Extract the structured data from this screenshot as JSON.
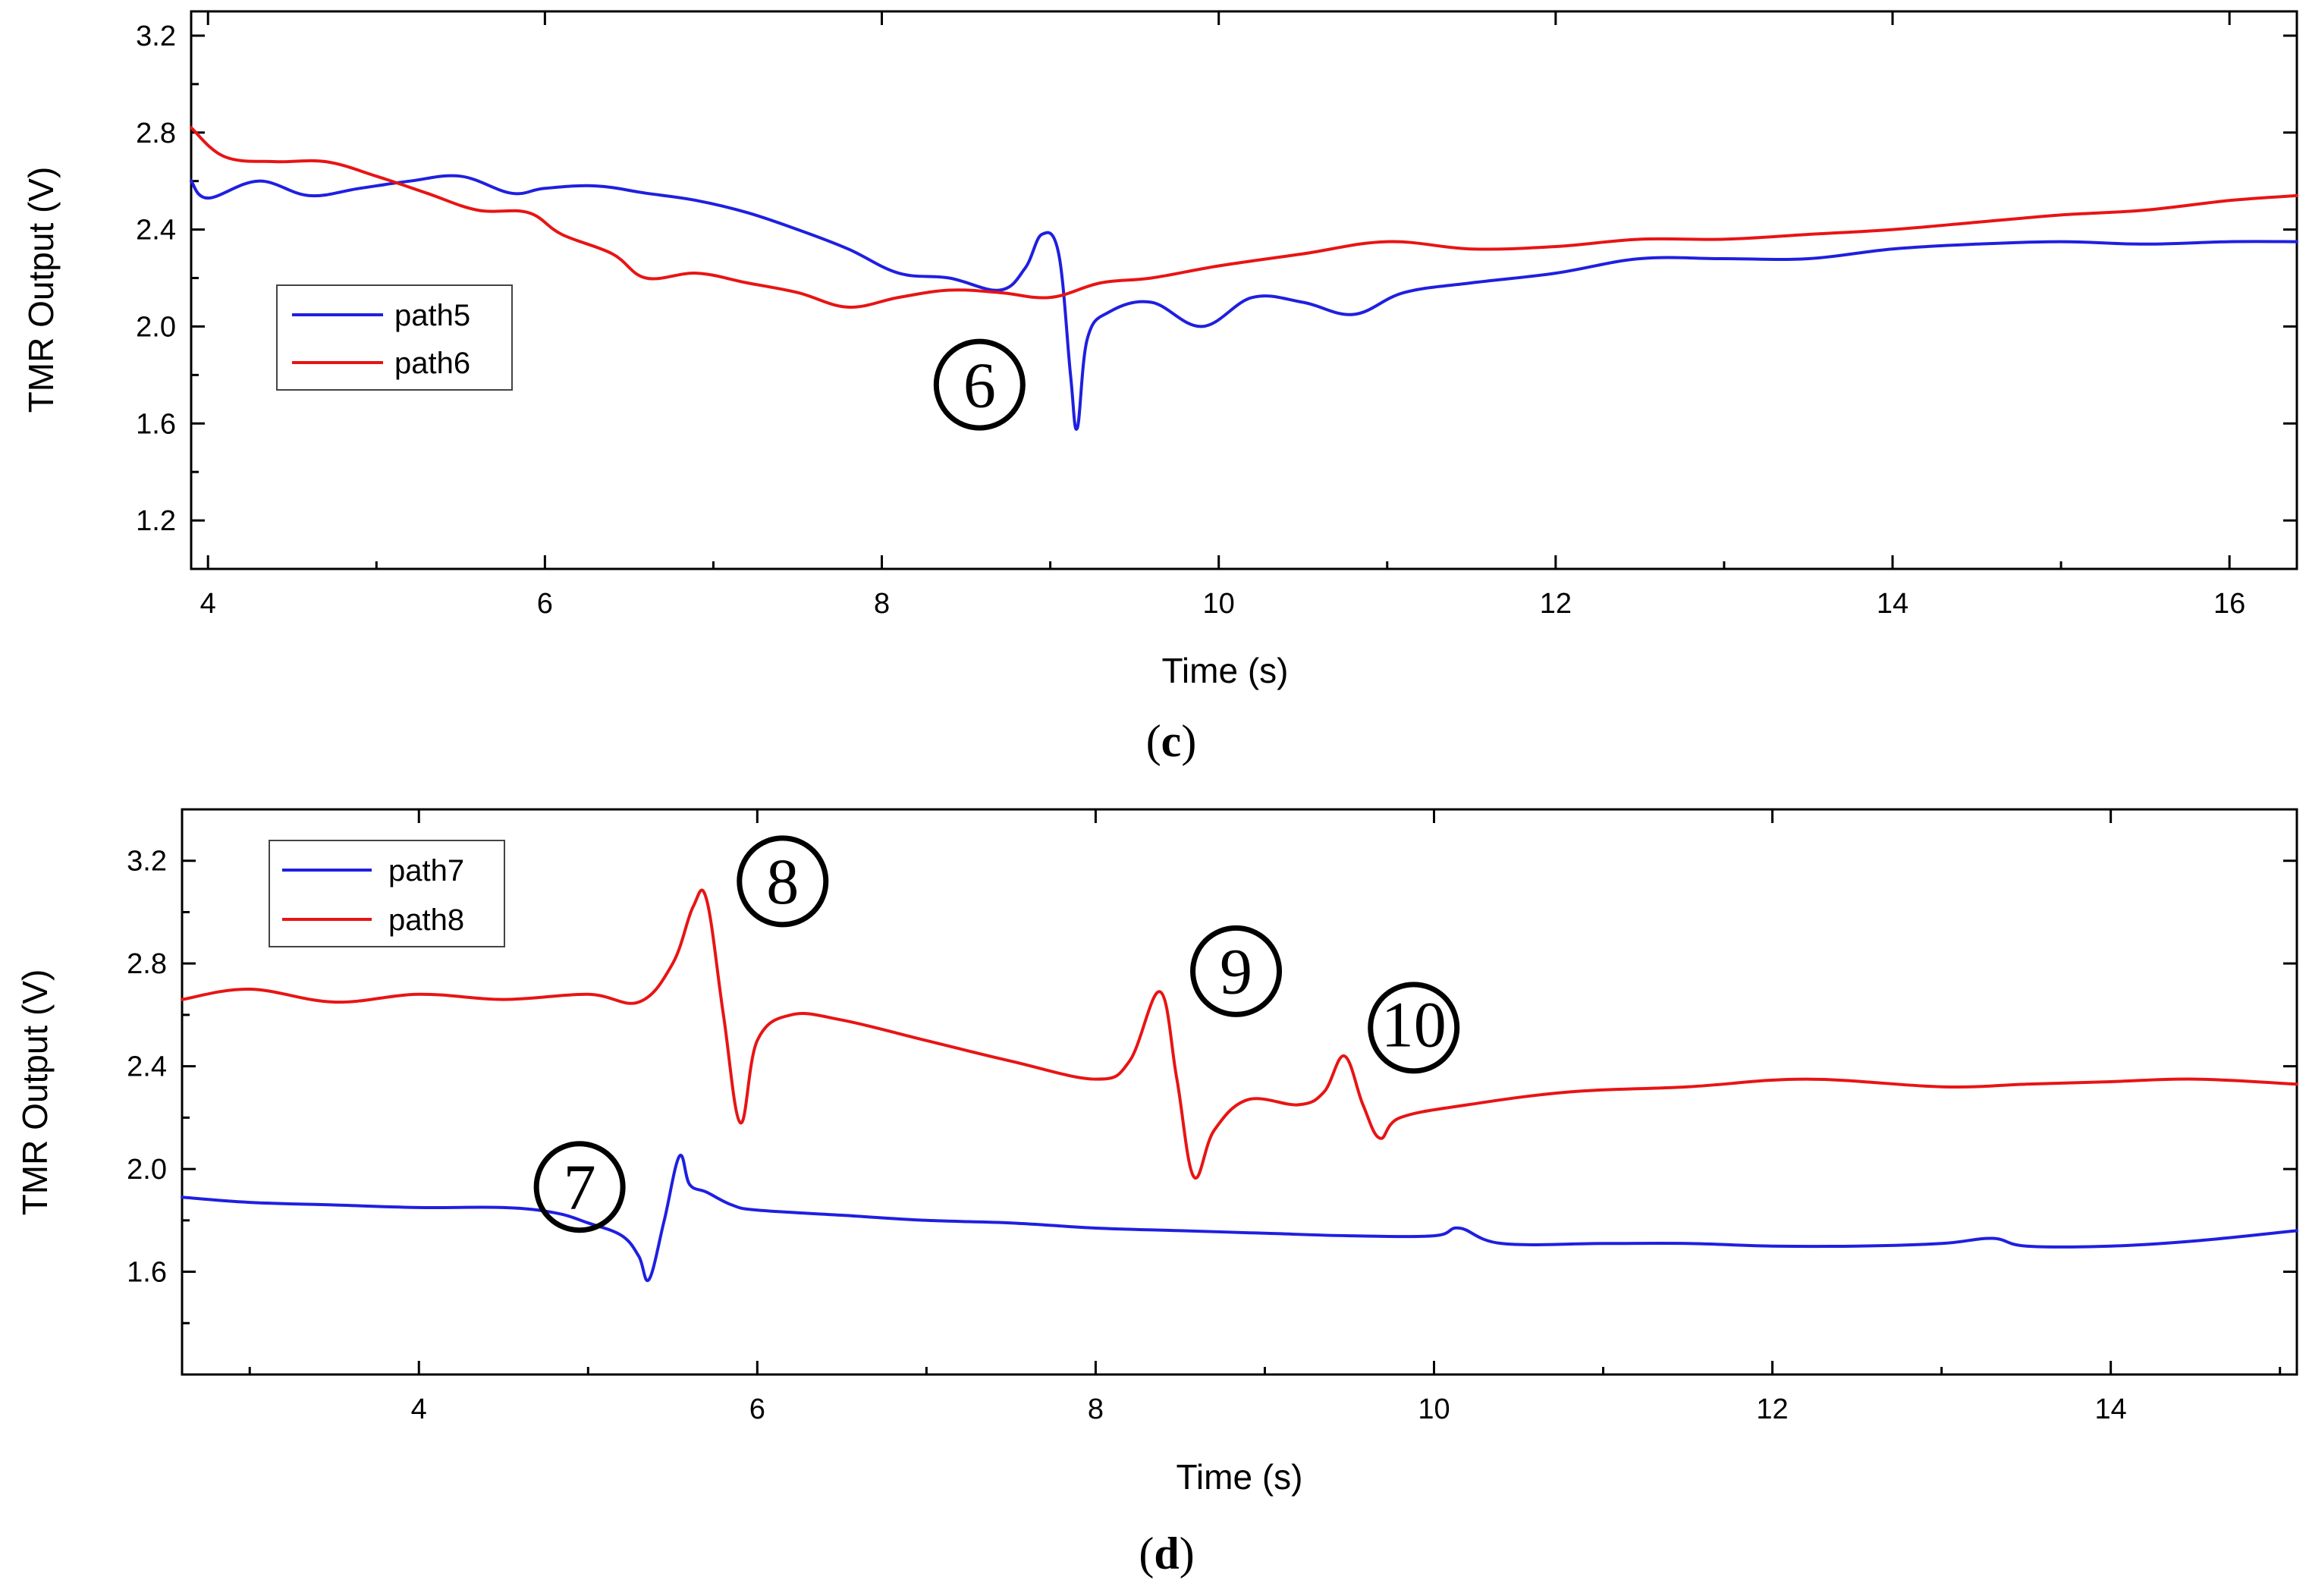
{
  "chart_data": [
    {
      "type": "line",
      "panel_label": "c",
      "xlabel": "Time (s)",
      "ylabel": "TMR Output (V)",
      "xlim": [
        3.9,
        16.4
      ],
      "ylim": [
        1.0,
        3.3
      ],
      "xticks": [
        4,
        6,
        8,
        10,
        12,
        14,
        16
      ],
      "yticks": [
        1.2,
        1.6,
        2.0,
        2.4,
        2.8,
        3.2
      ],
      "legend": "mid-left",
      "series": [
        {
          "name": "path5",
          "color": "#1f1fe0",
          "x": [
            3.9,
            4.0,
            4.3,
            4.6,
            4.9,
            5.2,
            5.5,
            5.8,
            6.0,
            6.3,
            6.6,
            6.9,
            7.2,
            7.5,
            7.8,
            8.1,
            8.4,
            8.7,
            8.85,
            8.95,
            9.05,
            9.12,
            9.16,
            9.22,
            9.35,
            9.6,
            9.9,
            10.2,
            10.5,
            10.8,
            11.1,
            11.5,
            12.0,
            12.5,
            13.0,
            13.5,
            14.0,
            14.5,
            15.0,
            15.5,
            16.0,
            16.4
          ],
          "y": [
            2.6,
            2.53,
            2.6,
            2.54,
            2.57,
            2.6,
            2.62,
            2.55,
            2.57,
            2.58,
            2.55,
            2.52,
            2.47,
            2.4,
            2.32,
            2.22,
            2.2,
            2.15,
            2.24,
            2.38,
            2.3,
            1.8,
            1.58,
            1.95,
            2.06,
            2.1,
            2.0,
            2.12,
            2.1,
            2.05,
            2.14,
            2.18,
            2.22,
            2.28,
            2.28,
            2.28,
            2.32,
            2.34,
            2.35,
            2.34,
            2.35,
            2.35
          ]
        },
        {
          "name": "path6",
          "color": "#e81414",
          "x": [
            3.9,
            4.1,
            4.4,
            4.7,
            5.0,
            5.3,
            5.6,
            5.9,
            6.1,
            6.4,
            6.6,
            6.9,
            7.2,
            7.5,
            7.8,
            8.1,
            8.4,
            8.7,
            9.0,
            9.3,
            9.6,
            10.0,
            10.5,
            11.0,
            11.5,
            12.0,
            12.5,
            13.0,
            13.5,
            14.0,
            14.5,
            15.0,
            15.5,
            16.0,
            16.4
          ],
          "y": [
            2.82,
            2.7,
            2.68,
            2.68,
            2.62,
            2.55,
            2.48,
            2.47,
            2.38,
            2.3,
            2.2,
            2.22,
            2.18,
            2.14,
            2.08,
            2.12,
            2.15,
            2.14,
            2.12,
            2.18,
            2.2,
            2.25,
            2.3,
            2.35,
            2.32,
            2.33,
            2.36,
            2.36,
            2.38,
            2.4,
            2.43,
            2.46,
            2.48,
            2.52,
            2.54
          ]
        }
      ],
      "annotations": [
        {
          "label": "6",
          "x": 8.58,
          "y": 1.76
        }
      ]
    },
    {
      "type": "line",
      "panel_label": "d",
      "xlabel": "Time (s)",
      "ylabel": "TMR Output (V)",
      "xlim": [
        2.6,
        15.1
      ],
      "ylim": [
        1.2,
        3.4
      ],
      "xticks": [
        4,
        6,
        8,
        10,
        12,
        14
      ],
      "yticks": [
        1.6,
        2.0,
        2.4,
        2.8,
        3.2
      ],
      "legend": "top-left",
      "series": [
        {
          "name": "path7",
          "color": "#1f1fe0",
          "x": [
            2.6,
            3.0,
            3.5,
            4.0,
            4.5,
            4.8,
            5.0,
            5.2,
            5.3,
            5.36,
            5.45,
            5.54,
            5.6,
            5.7,
            5.85,
            6.0,
            6.5,
            7.0,
            7.5,
            8.0,
            8.5,
            9.0,
            9.5,
            10.0,
            10.15,
            10.4,
            11.0,
            11.5,
            12.0,
            12.5,
            13.0,
            13.3,
            13.5,
            14.0,
            14.5,
            15.1
          ],
          "y": [
            1.89,
            1.87,
            1.86,
            1.85,
            1.85,
            1.83,
            1.79,
            1.74,
            1.66,
            1.57,
            1.8,
            2.05,
            1.94,
            1.91,
            1.86,
            1.84,
            1.82,
            1.8,
            1.79,
            1.77,
            1.76,
            1.75,
            1.74,
            1.74,
            1.77,
            1.71,
            1.71,
            1.71,
            1.7,
            1.7,
            1.71,
            1.73,
            1.7,
            1.7,
            1.72,
            1.76
          ]
        },
        {
          "name": "path8",
          "color": "#e81414",
          "x": [
            2.6,
            3.0,
            3.5,
            4.0,
            4.5,
            5.0,
            5.3,
            5.5,
            5.62,
            5.7,
            5.8,
            5.9,
            6.0,
            6.2,
            6.5,
            7.0,
            7.5,
            8.0,
            8.2,
            8.38,
            8.48,
            8.58,
            8.7,
            8.9,
            9.2,
            9.35,
            9.47,
            9.58,
            9.68,
            9.8,
            10.2,
            10.8,
            11.5,
            12.2,
            13.0,
            13.5,
            14.0,
            14.5,
            15.1
          ],
          "y": [
            2.66,
            2.7,
            2.65,
            2.68,
            2.66,
            2.68,
            2.65,
            2.8,
            3.02,
            3.05,
            2.6,
            2.18,
            2.5,
            2.6,
            2.58,
            2.5,
            2.42,
            2.35,
            2.42,
            2.69,
            2.35,
            1.97,
            2.15,
            2.27,
            2.25,
            2.3,
            2.44,
            2.25,
            2.12,
            2.2,
            2.25,
            2.3,
            2.32,
            2.35,
            2.32,
            2.33,
            2.34,
            2.35,
            2.33
          ]
        }
      ],
      "annotations": [
        {
          "label": "7",
          "x": 4.95,
          "y": 1.93
        },
        {
          "label": "8",
          "x": 6.15,
          "y": 3.12
        },
        {
          "label": "9",
          "x": 8.83,
          "y": 2.77
        },
        {
          "label": "10",
          "x": 9.88,
          "y": 2.55
        }
      ]
    }
  ]
}
